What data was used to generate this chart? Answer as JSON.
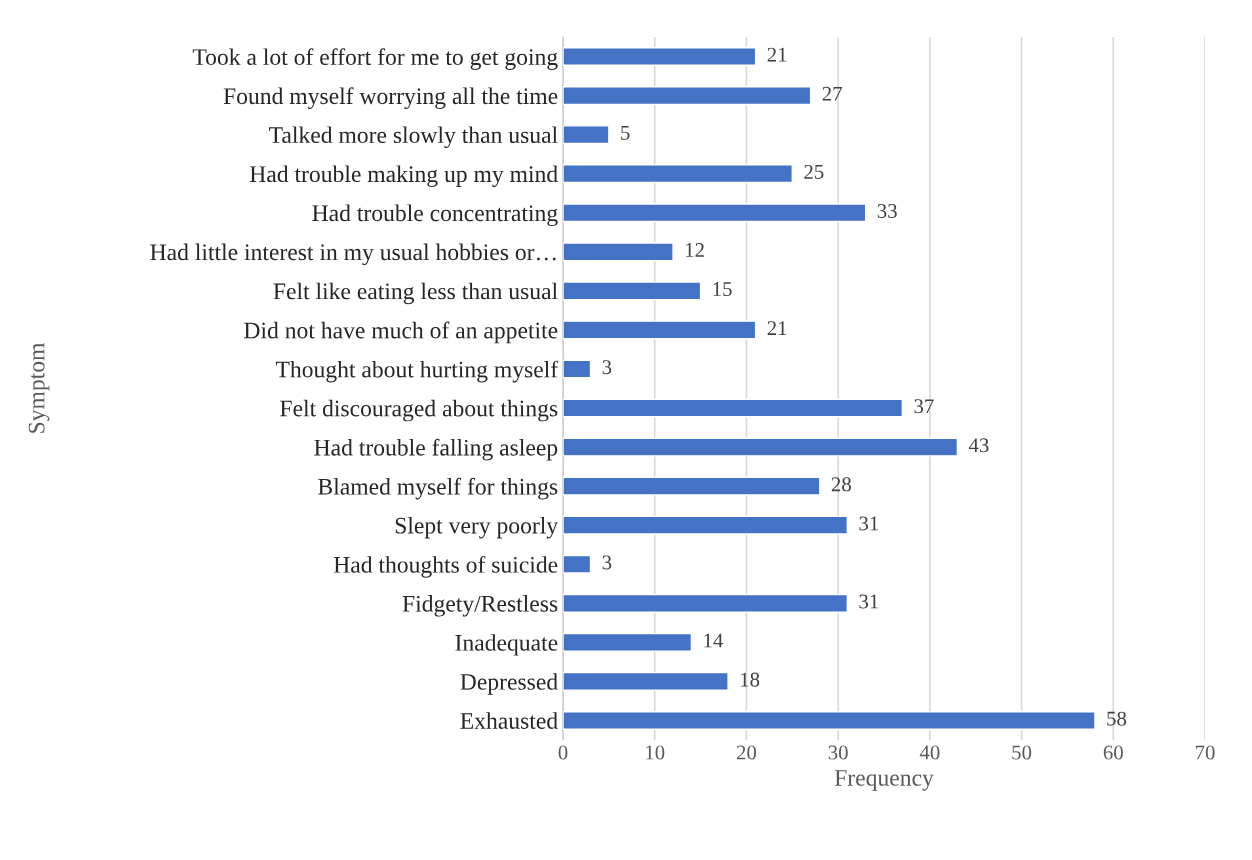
{
  "chart_data": {
    "type": "bar",
    "orientation": "horizontal",
    "xlabel": "Frequency",
    "ylabel": "Symptom",
    "categories": [
      "Took a lot of effort for me to get going",
      "Found myself worrying all the time",
      "Talked more slowly than usual",
      "Had trouble making up my mind",
      "Had trouble concentrating",
      "Had little interest in my usual hobbies or…",
      "Felt like eating less than usual",
      "Did not have much of an appetite",
      "Thought about hurting myself",
      "Felt discouraged about things",
      "Had trouble falling asleep",
      "Blamed myself for things",
      "Slept very poorly",
      "Had thoughts of suicide",
      "Fidgety/Restless",
      "Inadequate",
      "Depressed",
      "Exhausted"
    ],
    "values": [
      21,
      27,
      5,
      25,
      33,
      12,
      15,
      21,
      3,
      37,
      43,
      28,
      31,
      3,
      31,
      14,
      18,
      58
    ],
    "color": "#4472c4",
    "xlim": [
      0,
      70
    ],
    "xticks": [
      0,
      10,
      20,
      30,
      40,
      50,
      60,
      70
    ],
    "grid": "x",
    "data_labels": true,
    "legend": false
  }
}
